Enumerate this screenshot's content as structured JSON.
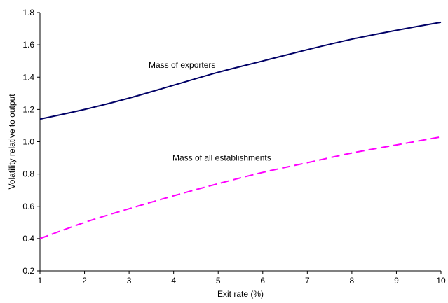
{
  "chart_data": {
    "type": "line",
    "title": "",
    "xlabel": "Exit rate (%)",
    "ylabel": "Volatility relative to output",
    "xlim": [
      1,
      10
    ],
    "ylim": [
      0.2,
      1.8
    ],
    "xticks": [
      1,
      2,
      3,
      4,
      5,
      6,
      7,
      8,
      9,
      10
    ],
    "yticks": [
      "0.2",
      "0.4",
      "0.6",
      "0.8",
      "1.0",
      "1.2",
      "1.4",
      "1.6",
      "1.8"
    ],
    "grid": false,
    "legend": "none",
    "series": [
      {
        "label": "Mass of exporters",
        "color": "#000066",
        "style": "solid",
        "x": [
          1,
          2,
          3,
          4,
          5,
          6,
          7,
          8,
          9,
          10
        ],
        "values": [
          1.14,
          1.2,
          1.27,
          1.35,
          1.43,
          1.5,
          1.57,
          1.635,
          1.69,
          1.74
        ]
      },
      {
        "label": "Mass of all establishments",
        "color": "#ff00ff",
        "style": "dashed",
        "x": [
          1,
          2,
          3,
          4,
          5,
          6,
          7,
          8,
          9,
          10
        ],
        "values": [
          0.4,
          0.5,
          0.585,
          0.665,
          0.74,
          0.81,
          0.87,
          0.93,
          0.98,
          1.03
        ]
      }
    ],
    "annotations": [
      "Mass of exporters",
      "Mass of all establishments"
    ]
  }
}
